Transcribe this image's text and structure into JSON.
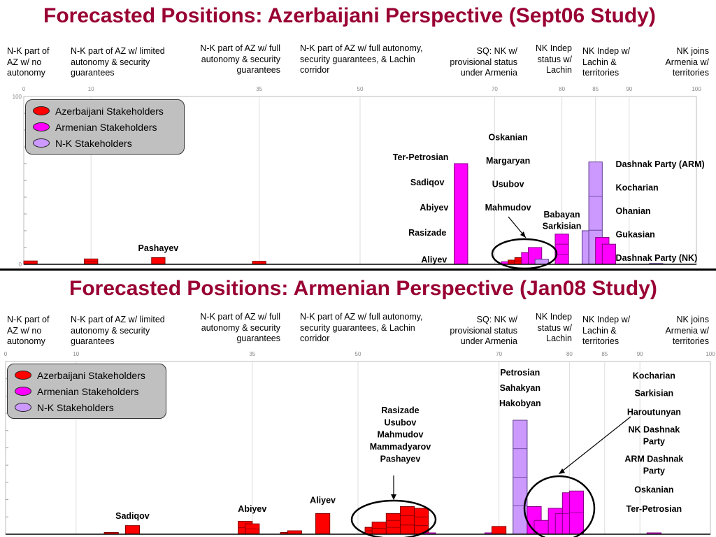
{
  "colors": {
    "azerbaijani": "#ff0000",
    "armenian": "#ff00ff",
    "nk": "#cc99ff",
    "title": "#990033"
  },
  "positions": [
    {
      "text": "N-K part of AZ w/ no autonomy",
      "align": "l"
    },
    {
      "text": "N-K part of AZ w/ limited autonomy & security guarantees",
      "align": "l"
    },
    {
      "text": "N-K part of AZ w/ full autonomy & security guarantees",
      "align": "r"
    },
    {
      "text": "N-K part of AZ w/ full autonomy, security guarantees, & Lachin corridor",
      "align": "l"
    },
    {
      "text": "SQ: NK w/ provisional status under Armenia",
      "align": "r"
    },
    {
      "text": "NK Indep status w/ Lachin",
      "align": "r"
    },
    {
      "text": "NK Indep w/ Lachin & territories",
      "align": "l"
    },
    {
      "text": "NK joins Armenia w/ territories",
      "align": "r"
    }
  ],
  "legend": [
    "Azerbaijani Stakeholders",
    "Armenian Stakeholders",
    "N-K Stakeholders"
  ],
  "chart_data": [
    {
      "type": "bar",
      "title": "Forecasted Positions: Azerbaijani Perspective (Sept06 Study)",
      "x_ticks": [
        0,
        10,
        35,
        50,
        70,
        80,
        85,
        90,
        100
      ],
      "y_ticks": [
        0,
        100
      ],
      "xlim": [
        0,
        100
      ],
      "ylim": [
        0,
        100
      ],
      "bars": [
        {
          "group": "azerbaijani",
          "x": [
            0,
            2
          ],
          "height": 2.0,
          "stack": 1
        },
        {
          "group": "azerbaijani",
          "x": [
            9,
            11
          ],
          "height": 3.2,
          "stack": 2
        },
        {
          "group": "azerbaijani",
          "x": [
            19,
            21
          ],
          "height": 4.0,
          "stack": 1
        },
        {
          "group": "azerbaijani",
          "x": [
            34,
            36
          ],
          "height": 1.8,
          "stack": 1
        },
        {
          "group": "azerbaijani",
          "x": [
            64,
            66
          ],
          "height": 58,
          "stack": 14
        },
        {
          "group": "armenian",
          "x": [
            64,
            66
          ],
          "height": 60,
          "stack": 1
        },
        {
          "group": "armenian",
          "x": [
            71,
            73
          ],
          "height": 1.5,
          "stack": 1
        },
        {
          "group": "azerbaijani",
          "x": [
            72,
            74
          ],
          "height": 2.5,
          "stack": 2
        },
        {
          "group": "azerbaijani",
          "x": [
            73,
            75
          ],
          "height": 4,
          "stack": 2
        },
        {
          "group": "armenian",
          "x": [
            74,
            76
          ],
          "height": 7,
          "stack": 1
        },
        {
          "group": "armenian",
          "x": [
            75,
            77
          ],
          "height": 10,
          "stack": 1
        },
        {
          "group": "nk",
          "x": [
            76,
            78
          ],
          "height": 3,
          "stack": 1
        },
        {
          "group": "armenian",
          "x": [
            79,
            81
          ],
          "height": 18,
          "stack": 3
        },
        {
          "group": "nk",
          "x": [
            83,
            85
          ],
          "height": 20,
          "stack": 1
        },
        {
          "group": "nk",
          "x": [
            84,
            86
          ],
          "height": 61,
          "stack": 3
        },
        {
          "group": "armenian",
          "x": [
            85,
            87
          ],
          "height": 16,
          "stack": 1
        },
        {
          "group": "armenian",
          "x": [
            86,
            88
          ],
          "height": 12,
          "stack": 1
        },
        {
          "group": "nk",
          "x": [
            93,
            95
          ],
          "height": 0.5,
          "stack": 1
        }
      ],
      "labels": [
        {
          "text": "Pashayev",
          "x": 20,
          "y": 8
        },
        {
          "text": "Ter-Petrosian",
          "x": 59,
          "y": 62
        },
        {
          "text": "Sadiqov",
          "x": 60,
          "y": 47
        },
        {
          "text": "Abiyev",
          "x": 61,
          "y": 32
        },
        {
          "text": "Rasizade",
          "x": 60,
          "y": 17
        },
        {
          "text": "Aliyev",
          "x": 61,
          "y": 1
        },
        {
          "text": "Oskanian",
          "x": 72,
          "y": 74
        },
        {
          "text": "Margaryan",
          "x": 72,
          "y": 60
        },
        {
          "text": "Usubov",
          "x": 72,
          "y": 46
        },
        {
          "text": "Mahmudov",
          "x": 72,
          "y": 32
        },
        {
          "text": "Babayan",
          "x": 80,
          "y": 28
        },
        {
          "text": "Sarkisian",
          "x": 80,
          "y": 21
        },
        {
          "text": "Dashnak Party (ARM)",
          "x": 88,
          "y": 58,
          "anchor": "start"
        },
        {
          "text": "Kocharian",
          "x": 88,
          "y": 44,
          "anchor": "start"
        },
        {
          "text": "Ohanian",
          "x": 88,
          "y": 30,
          "anchor": "start"
        },
        {
          "text": "Gukasian",
          "x": 88,
          "y": 16,
          "anchor": "start"
        },
        {
          "text": "Dashnak Party (NK)",
          "x": 88,
          "y": 2,
          "anchor": "start"
        }
      ]
    },
    {
      "type": "bar",
      "title": "Forecasted Positions: Armenian Perspective (Jan08 Study)",
      "x_ticks": [
        0,
        10,
        35,
        50,
        70,
        80,
        85,
        90,
        100
      ],
      "xlim": [
        0,
        100
      ],
      "ylim": [
        0,
        100
      ],
      "bars": [
        {
          "group": "azerbaijani",
          "x": [
            14,
            16
          ],
          "height": 1,
          "stack": 1
        },
        {
          "group": "azerbaijani",
          "x": [
            17,
            19
          ],
          "height": 5,
          "stack": 1
        },
        {
          "group": "azerbaijani",
          "x": [
            33,
            35
          ],
          "height": 7.5,
          "stack": 2
        },
        {
          "group": "azerbaijani",
          "x": [
            34,
            36
          ],
          "height": 6,
          "stack": 2
        },
        {
          "group": "azerbaijani",
          "x": [
            39,
            41
          ],
          "height": 1,
          "stack": 1
        },
        {
          "group": "azerbaijani",
          "x": [
            40,
            42
          ],
          "height": 2,
          "stack": 1
        },
        {
          "group": "azerbaijani",
          "x": [
            44,
            46
          ],
          "height": 12,
          "stack": 1
        },
        {
          "group": "azerbaijani",
          "x": [
            51,
            53
          ],
          "height": 4,
          "stack": 2
        },
        {
          "group": "azerbaijani",
          "x": [
            52,
            54
          ],
          "height": 7,
          "stack": 2
        },
        {
          "group": "azerbaijani",
          "x": [
            54,
            56
          ],
          "height": 12,
          "stack": 3
        },
        {
          "group": "azerbaijani",
          "x": [
            56,
            58
          ],
          "height": 16,
          "stack": 3
        },
        {
          "group": "azerbaijani",
          "x": [
            58,
            60
          ],
          "height": 15,
          "stack": 3
        },
        {
          "group": "armenian",
          "x": [
            59,
            61
          ],
          "height": 0.8,
          "stack": 1
        },
        {
          "group": "armenian",
          "x": [
            68,
            70
          ],
          "height": 0.8,
          "stack": 1
        },
        {
          "group": "azerbaijani",
          "x": [
            69,
            71
          ],
          "height": 4.5,
          "stack": 1
        },
        {
          "group": "nk",
          "x": [
            72,
            74
          ],
          "height": 66,
          "stack": 4
        },
        {
          "group": "armenian",
          "x": [
            74,
            76
          ],
          "height": 16,
          "stack": 1
        },
        {
          "group": "armenian",
          "x": [
            75,
            77
          ],
          "height": 8,
          "stack": 1
        },
        {
          "group": "armenian",
          "x": [
            77,
            79
          ],
          "height": 15,
          "stack": 1
        },
        {
          "group": "armenian",
          "x": [
            78,
            80
          ],
          "height": 12,
          "stack": 1
        },
        {
          "group": "armenian",
          "x": [
            79,
            81
          ],
          "height": 24,
          "stack": 2
        },
        {
          "group": "armenian",
          "x": [
            80,
            82
          ],
          "height": 25,
          "stack": 2
        },
        {
          "group": "armenian",
          "x": [
            91,
            93
          ],
          "height": 0.8,
          "stack": 1
        }
      ],
      "labels": [
        {
          "text": "Sadiqov",
          "x": 18,
          "y": 9
        },
        {
          "text": "Abiyev",
          "x": 35,
          "y": 13
        },
        {
          "text": "Aliyev",
          "x": 45,
          "y": 18
        },
        {
          "text": "Rasizade",
          "x": 56,
          "y": 70
        },
        {
          "text": "Usubov",
          "x": 56,
          "y": 63
        },
        {
          "text": "Mahmudov",
          "x": 56,
          "y": 56
        },
        {
          "text": "Mammadyarov",
          "x": 56,
          "y": 49
        },
        {
          "text": "Pashayev",
          "x": 56,
          "y": 42
        },
        {
          "text": "Petrosian",
          "x": 73,
          "y": 92
        },
        {
          "text": "Sahakyan",
          "x": 73,
          "y": 83
        },
        {
          "text": "Hakobyan",
          "x": 73,
          "y": 74
        },
        {
          "text": "Kocharian",
          "x": 92,
          "y": 90
        },
        {
          "text": "Sarkisian",
          "x": 92,
          "y": 80
        },
        {
          "text": "Haroutunyan",
          "x": 92,
          "y": 69
        },
        {
          "text": "NK Dashnak",
          "x": 92,
          "y": 59
        },
        {
          "text": "Party",
          "x": 92,
          "y": 52
        },
        {
          "text": "ARM  Dashnak",
          "x": 92,
          "y": 42
        },
        {
          "text": "Party",
          "x": 92,
          "y": 35
        },
        {
          "text": "Oskanian",
          "x": 92,
          "y": 24
        },
        {
          "text": "Ter-Petrosian",
          "x": 92,
          "y": 13
        }
      ]
    }
  ]
}
